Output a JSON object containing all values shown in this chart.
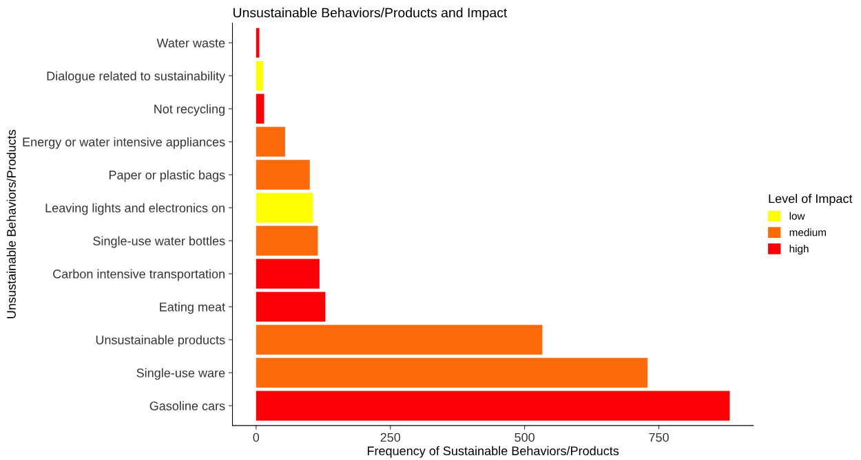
{
  "chart_data": {
    "type": "bar",
    "orientation": "horizontal",
    "title": "Unsustainable Behaviors/Products and Impact",
    "xlabel": "Frequency of Sustainable Behaviors/Products",
    "ylabel": "Unsustainable Behaviors/Products",
    "legend_title": "Level of Impact",
    "legend": "right",
    "grid": false,
    "categories": [
      "Water waste",
      "Dialogue related to sustainability",
      "Not recycling",
      "Energy or water intensive appliances",
      "Paper or plastic bags",
      "Leaving lights and electronics on",
      "Single-use water bottles",
      "Carbon intensive transportation",
      "Eating meat",
      "Unsustainable products",
      "Single-use ware",
      "Gasoline cars"
    ],
    "series": [
      {
        "name": "low",
        "color": "#ffff00",
        "values": [
          null,
          13,
          null,
          null,
          null,
          106,
          null,
          null,
          null,
          null,
          null,
          null
        ]
      },
      {
        "name": "medium",
        "color": "#fd6a0a",
        "values": [
          null,
          null,
          null,
          54,
          100,
          null,
          115,
          null,
          null,
          533,
          729,
          null
        ]
      },
      {
        "name": "high",
        "color": "#fb0007",
        "values": [
          6,
          null,
          15,
          null,
          null,
          null,
          null,
          118,
          129,
          null,
          null,
          882
        ]
      }
    ],
    "xlim": [
      -44,
      926
    ],
    "xticks": [
      0,
      250,
      500,
      750
    ]
  }
}
